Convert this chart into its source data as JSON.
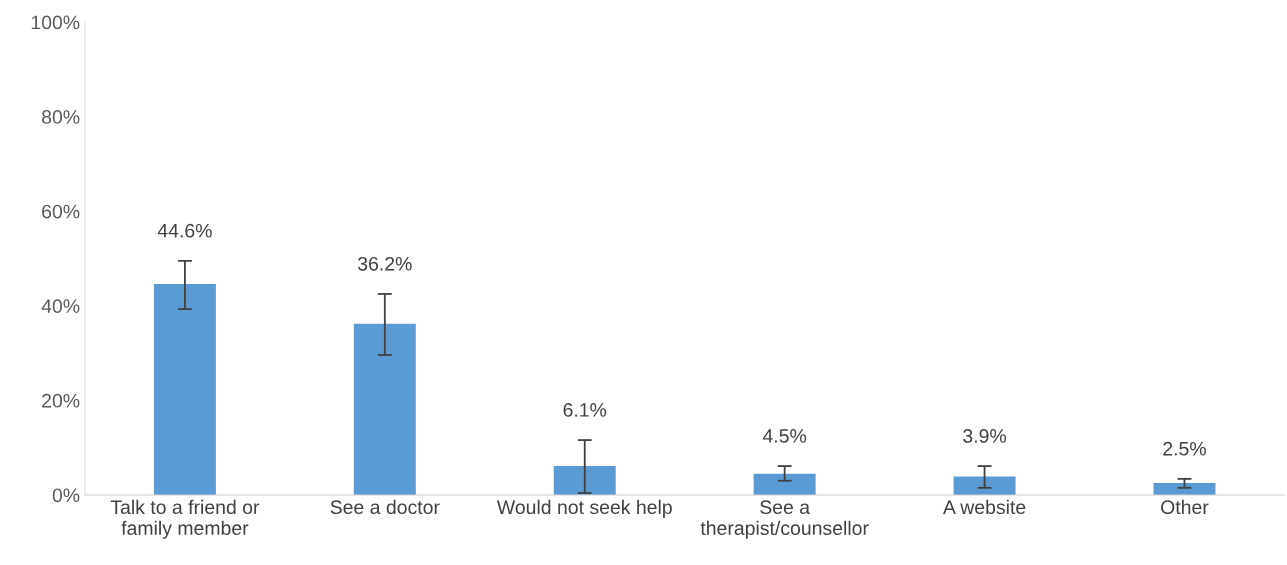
{
  "chart_data": {
    "type": "bar",
    "categories": [
      "Talk to a friend or\nfamily member",
      "See a doctor",
      "Would not seek help",
      "See a\ntherapist/counsellor",
      "A website",
      "Other"
    ],
    "values": [
      44.6,
      36.2,
      6.1,
      4.5,
      3.9,
      2.5
    ],
    "value_labels": [
      "44.6%",
      "36.2%",
      "6.1%",
      "4.5%",
      "3.9%",
      "2.5%"
    ],
    "errors": [
      [
        39.3,
        49.5
      ],
      [
        29.6,
        42.5
      ],
      [
        0.4,
        11.6
      ],
      [
        3.0,
        6.1
      ],
      [
        1.5,
        6.1
      ],
      [
        1.5,
        3.4
      ]
    ],
    "color": "#5b9bd5",
    "ylim": [
      0,
      100
    ],
    "yticks": [
      {
        "value": 0,
        "label": "0%"
      },
      {
        "value": 20,
        "label": "20%"
      },
      {
        "value": 40,
        "label": "40%"
      },
      {
        "value": 60,
        "label": "60%"
      },
      {
        "value": 80,
        "label": "80%"
      },
      {
        "value": 100,
        "label": "100%"
      }
    ],
    "grid": false
  }
}
